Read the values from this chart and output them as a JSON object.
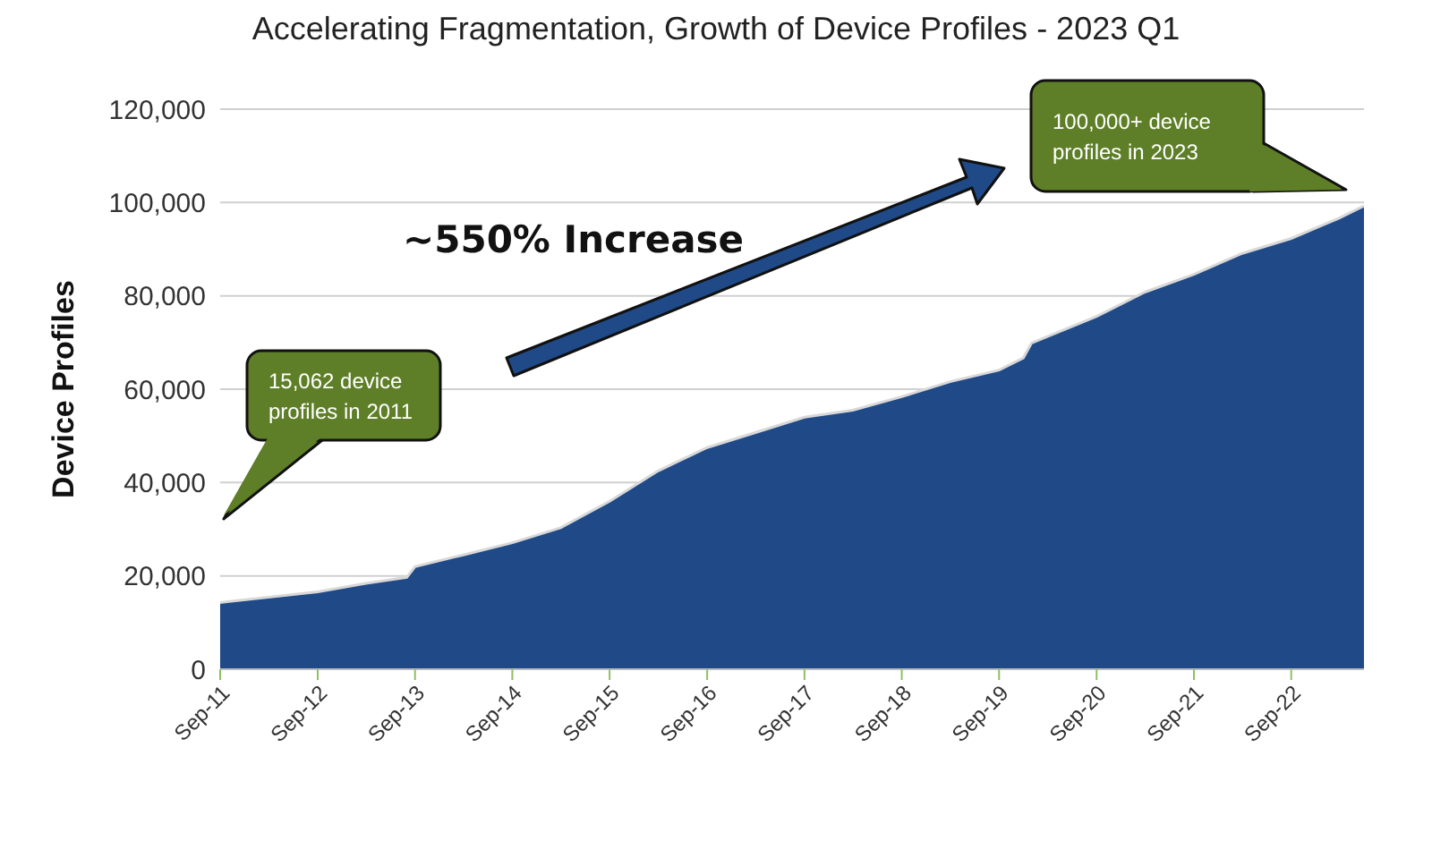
{
  "chart_data": {
    "type": "area",
    "title": "Accelerating Fragmentation, Growth of Device Profiles - 2023 Q1",
    "ylabel": "Device Profiles",
    "x": [
      "2011-09",
      "2012-09",
      "2013-03",
      "2013-08",
      "2013-09",
      "2014-03",
      "2014-09",
      "2015-03",
      "2015-09",
      "2016-03",
      "2016-09",
      "2017-03",
      "2017-09",
      "2018-03",
      "2018-09",
      "2019-03",
      "2019-09",
      "2019-12",
      "2020-01",
      "2020-09",
      "2021-03",
      "2021-09",
      "2022-03",
      "2022-09",
      "2023-03",
      "2023-06"
    ],
    "series": [
      {
        "color": "#1f4a87",
        "values": [
          14300,
          16600,
          18400,
          19700,
          22000,
          24500,
          27100,
          30300,
          36000,
          42500,
          47500,
          50700,
          54000,
          55500,
          58400,
          61600,
          64100,
          66700,
          69900,
          75600,
          80800,
          84600,
          89100,
          92300,
          96700,
          99300
        ]
      }
    ],
    "xlim": [
      "2011-09",
      "2023-06"
    ],
    "xticks": [
      {
        "value": "2011-09",
        "label": "Sep-11"
      },
      {
        "value": "2012-09",
        "label": "Sep-12"
      },
      {
        "value": "2013-09",
        "label": "Sep-13"
      },
      {
        "value": "2014-09",
        "label": "Sep-14"
      },
      {
        "value": "2015-09",
        "label": "Sep-15"
      },
      {
        "value": "2016-09",
        "label": "Sep-16"
      },
      {
        "value": "2017-09",
        "label": "Sep-17"
      },
      {
        "value": "2018-09",
        "label": "Sep-18"
      },
      {
        "value": "2019-09",
        "label": "Sep-19"
      },
      {
        "value": "2020-09",
        "label": "Sep-20"
      },
      {
        "value": "2021-09",
        "label": "Sep-21"
      },
      {
        "value": "2022-09",
        "label": "Sep-22"
      }
    ],
    "ylim": [
      0,
      120000
    ],
    "yticks": [
      0,
      {
        "value": 20000,
        "label": "20,000"
      },
      {
        "value": 40000,
        "label": "40,000"
      },
      {
        "value": 60000,
        "label": "60,000"
      },
      {
        "value": 80000,
        "label": "80,000"
      },
      {
        "value": 100000,
        "label": "100,000"
      },
      {
        "value": 120000,
        "label": "120,000"
      }
    ],
    "grid": "y",
    "legend": false,
    "annotations": [
      "15,062 device profiles in 2011",
      "100,000+ device profiles in 2023",
      "~550% Increase"
    ]
  }
}
